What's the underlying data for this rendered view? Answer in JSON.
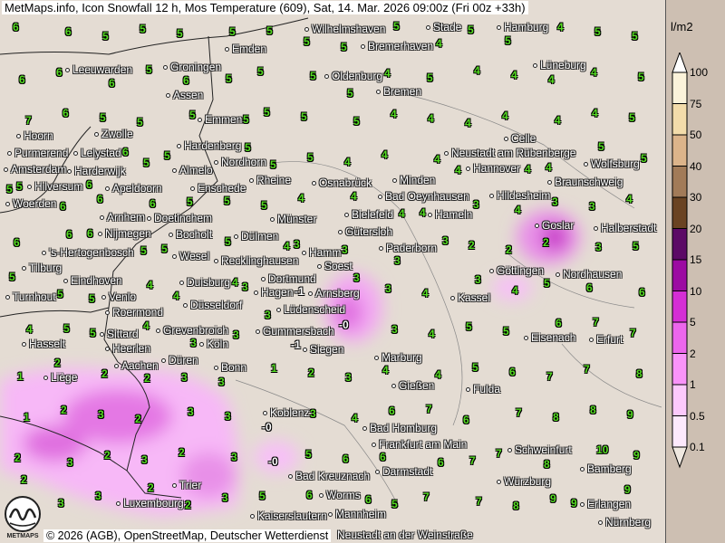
{
  "title": "MetMaps.info, Icon Snowfall 12 h, Mos Temperature (609), Sat, 14. Mar. 2026 09:00z (Fri 00z +33h)",
  "footer": "© 2026 (AGB), OpenStreetMap, Deutscher Wetterdienst",
  "logo_text": "METMAPS",
  "legend": {
    "unit": "l/m2",
    "ticks": [
      "100",
      "75",
      "50",
      "40",
      "30",
      "20",
      "15",
      "10",
      "5",
      "2",
      "1",
      "0.5",
      "0.1"
    ],
    "colors": [
      "#fbf3da",
      "#f3dcaa",
      "#dcb48a",
      "#a27b58",
      "#6a4322",
      "#5c0a66",
      "#9c0aa2",
      "#d52ed5",
      "#ec66ec",
      "#f993f9",
      "#fcc9fc",
      "#fde9fd"
    ],
    "over_color": "#ffffff",
    "under_color": "#efe8e0"
  },
  "colors": {
    "value_text": "#55dd22",
    "map_background": "#e4dcd3",
    "snow_light": "#f6b6f6",
    "snow_mid": "#e070e0"
  },
  "cities": [
    "Wilhelmshaven",
    "Bremerhaven",
    "Stade",
    "Hamburg",
    "Emden",
    "Leeuwarden",
    "Groningen",
    "Oldenburg",
    "Bremen",
    "Lüneburg",
    "Assen",
    "Emmen",
    "Hoorn",
    "Celle",
    "Purmerend",
    "Lelystad",
    "Zwolle",
    "Hardenberg",
    "Nordhorn",
    "Neustadt am Rübenberge",
    "Wolfsburg",
    "Amsterdam",
    "Harderwijk",
    "Almelo",
    "Hannover",
    "Rheine",
    "Osnabrück",
    "Minden",
    "Bad Oeynhausen",
    "Braunschweig",
    "Hilversum",
    "Apeldoorn",
    "Enschede",
    "Hameln",
    "Hildesheim",
    "Woerden",
    "Bielefeld",
    "Münster",
    "Gütersloh",
    "Arnhem",
    "Doetinchem",
    "Goslar",
    "Halberstadt",
    "Nijmegen",
    "Bocholt",
    "Dülmen",
    "Hamm",
    "Paderborn",
    "'s-Hertogenbosch",
    "Wesel",
    "Recklinghausen",
    "Soest",
    "Dortmund",
    "Göttingen",
    "Tilburg",
    "Eindhoven",
    "Venlo",
    "Duisburg",
    "Nordhausen",
    "Turnhout",
    "Hagen",
    "Arnsberg",
    "Kassel",
    "Düsseldorf",
    "Lüdenscheid",
    "Roermond",
    "Grevenbroich",
    "Gummersbach",
    "Eisenach",
    "Erfurt",
    "Hasselt",
    "Sittard",
    "Köln",
    "Siegen",
    "Heerlen",
    "Aachen",
    "Düren",
    "Marburg",
    "Bonn",
    "Liège",
    "Gießen",
    "Fulda",
    "Koblenz",
    "Bad Homburg",
    "Frankfurt am Main",
    "Schweinfurt",
    "Bad Kreuznach",
    "Darmstadt",
    "Bamberg",
    "Trier",
    "Würzburg",
    "Luxembourg",
    "Worms",
    "Erlangen",
    "Mannheim",
    "Kaiserslautern",
    "Nürnberg",
    "Neustadt an der Weinstraße"
  ],
  "values": [
    [
      "6",
      "6",
      "5",
      "5",
      "5",
      "5",
      "5",
      "5",
      "5",
      "5",
      "4",
      "5",
      "5",
      "4",
      "5",
      "5"
    ],
    [
      "6",
      "6",
      "6",
      "5",
      "6",
      "5",
      "5",
      "5",
      "5",
      "4",
      "5",
      "4",
      "4",
      "4",
      "4",
      "5"
    ],
    [
      "7",
      "6",
      "5",
      "5",
      "5",
      "5",
      "5",
      "5",
      "5",
      "4",
      "4",
      "4",
      "4",
      "4",
      "4",
      "5"
    ],
    [
      "5",
      "6",
      "6",
      "5",
      "5",
      "5",
      "5",
      "5",
      "4",
      "4",
      "4",
      "4",
      "4",
      "4",
      "5",
      "5"
    ],
    [
      "5",
      "6",
      "6",
      "6",
      "5",
      "5",
      "5",
      "4",
      "4",
      "4",
      "4",
      "3",
      "4",
      "3",
      "3",
      "4"
    ],
    [
      "6",
      "6",
      "6",
      "5",
      "5",
      "5",
      "4",
      "3",
      "3",
      "3",
      "3",
      "2",
      "2",
      "2",
      "3",
      "5"
    ],
    [
      "5",
      "5",
      "5",
      "4",
      "4",
      "4",
      "3",
      "-1",
      "3",
      "3",
      "4",
      "3",
      "4",
      "5",
      "6",
      "6"
    ],
    [
      "4",
      "5",
      "5",
      "4",
      "3",
      "3",
      "3",
      "-1",
      "-0",
      "3",
      "4",
      "5",
      "5",
      "6",
      "7",
      "7"
    ],
    [
      "1",
      "2",
      "2",
      "2",
      "3",
      "3",
      "1",
      "2",
      "3",
      "4",
      "4",
      "5",
      "6",
      "7",
      "7",
      "8"
    ],
    [
      "1",
      "2",
      "3",
      "2",
      "3",
      "3",
      "-0",
      "3",
      "4",
      "6",
      "7",
      "6",
      "7",
      "8",
      "8",
      "9"
    ],
    [
      "2",
      "3",
      "2",
      "3",
      "2",
      "3",
      "-0",
      "5",
      "6",
      "6",
      "6",
      "7",
      "7",
      "8",
      "10",
      "9"
    ],
    [
      "2",
      "3",
      "3",
      "2",
      "2",
      "3",
      "5",
      "6",
      "6",
      "5",
      "7",
      "7",
      "8",
      "9",
      "9",
      "9"
    ]
  ]
}
